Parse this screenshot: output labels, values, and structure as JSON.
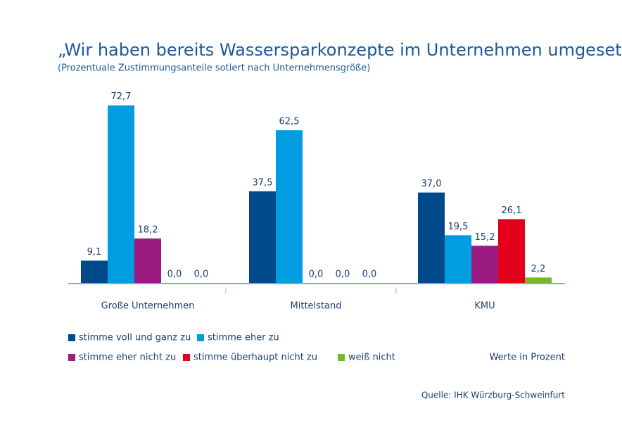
{
  "chart_data": {
    "type": "bar",
    "title": "„Wir haben bereits Wassersparkonzepte im Unternehmen umgesetzt“",
    "subtitle": "(Prozentuale Zustimmungsanteile sotiert nach Unternehmensgröße)",
    "categories": [
      "Große Unternehmen",
      "Mittelstand",
      "KMU"
    ],
    "series": [
      {
        "name": "stimme voll und ganz zu",
        "color": "#004a8c",
        "values": [
          9.1,
          37.5,
          37.0
        ],
        "value_labels": [
          "9,1",
          "37,5",
          "37,0"
        ]
      },
      {
        "name": "stimme eher zu",
        "color": "#009ee0",
        "values": [
          72.7,
          62.5,
          19.5
        ],
        "value_labels": [
          "72,7",
          "62,5",
          "19,5"
        ]
      },
      {
        "name": "stimme eher nicht zu",
        "color": "#9b1b82",
        "values": [
          18.2,
          0.0,
          15.2
        ],
        "value_labels": [
          "18,2",
          "0,0",
          "15,2"
        ]
      },
      {
        "name": "stimme überhaupt nicht zu",
        "color": "#e2001a",
        "values": [
          0.0,
          0.0,
          26.1
        ],
        "value_labels": [
          "0,0",
          "0,0",
          "26,1"
        ]
      },
      {
        "name": "weiß nicht",
        "color": "#76b82a",
        "values": [
          0.0,
          0.0,
          2.2
        ],
        "value_labels": [
          "0,0",
          "0,0",
          "2,2"
        ]
      }
    ],
    "note": "Werte in Prozent",
    "source": "Quelle: IHK Würzburg-Schweinfurt"
  }
}
